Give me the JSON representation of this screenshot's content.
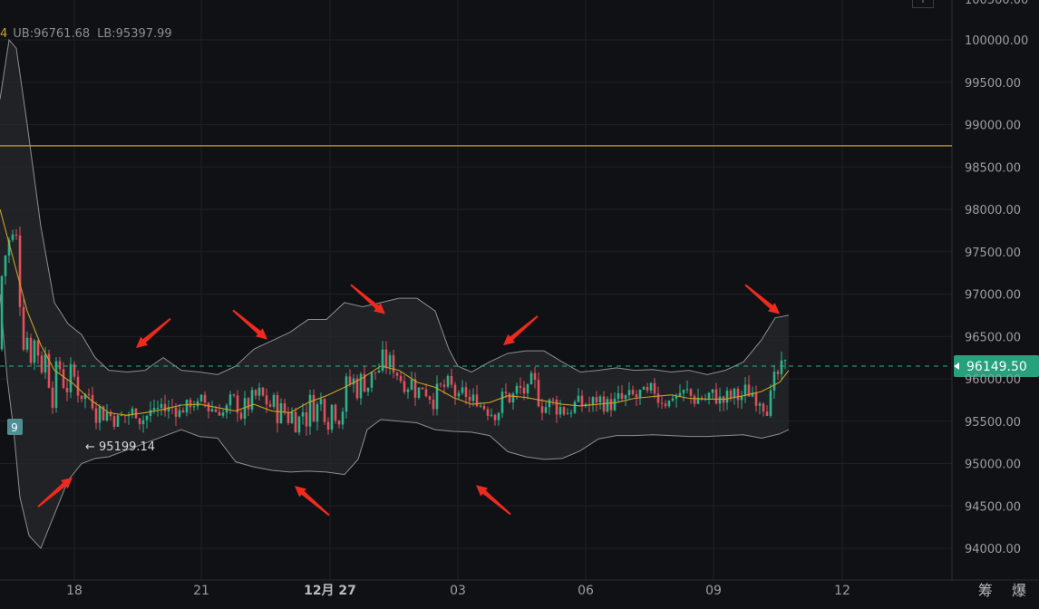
{
  "legend": {
    "accent_text": "4",
    "ub_label": "UB:96761.68",
    "lb_label": "LB:95397.99"
  },
  "chart_data": {
    "type": "candlestick",
    "y_ticks": [
      "94000.00",
      "94500.00",
      "95000.00",
      "95500.00",
      "96000.00",
      "96500.00",
      "97000.00",
      "97500.00",
      "98000.00",
      "98500.00",
      "99000.00",
      "99500.00",
      "100000.00"
    ],
    "x_ticks": [
      "18",
      "21",
      "12月 27",
      "03",
      "06",
      "09",
      "12"
    ],
    "ylim": [
      93800,
      100200
    ],
    "current_price": "96149.50",
    "horizontal_line_price": 98750,
    "low_marker_label": "← 95199.14",
    "left_badge": "9",
    "bands_upper": [
      [
        0,
        99300
      ],
      [
        10,
        100000
      ],
      [
        18,
        99900
      ],
      [
        30,
        99000
      ],
      [
        45,
        97800
      ],
      [
        60,
        96900
      ],
      [
        75,
        96650
      ],
      [
        90,
        96520
      ],
      [
        105,
        96250
      ],
      [
        120,
        96100
      ],
      [
        140,
        96080
      ],
      [
        160,
        96100
      ],
      [
        180,
        96250
      ],
      [
        200,
        96100
      ],
      [
        220,
        96080
      ],
      [
        240,
        96050
      ],
      [
        260,
        96150
      ],
      [
        280,
        96350
      ],
      [
        300,
        96450
      ],
      [
        320,
        96550
      ],
      [
        340,
        96700
      ],
      [
        360,
        96700
      ],
      [
        380,
        96900
      ],
      [
        400,
        96850
      ],
      [
        420,
        96900
      ],
      [
        440,
        96950
      ],
      [
        460,
        96950
      ],
      [
        480,
        96800
      ],
      [
        495,
        96350
      ],
      [
        505,
        96150
      ],
      [
        520,
        96080
      ],
      [
        540,
        96200
      ],
      [
        560,
        96300
      ],
      [
        580,
        96330
      ],
      [
        600,
        96330
      ],
      [
        620,
        96200
      ],
      [
        640,
        96080
      ],
      [
        660,
        96100
      ],
      [
        680,
        96130
      ],
      [
        700,
        96100
      ],
      [
        720,
        96110
      ],
      [
        740,
        96080
      ],
      [
        760,
        96100
      ],
      [
        780,
        96050
      ],
      [
        800,
        96100
      ],
      [
        820,
        96200
      ],
      [
        840,
        96460
      ],
      [
        855,
        96720
      ],
      [
        870,
        96750
      ]
    ],
    "bands_lower": [
      [
        0,
        97000
      ],
      [
        8,
        96000
      ],
      [
        15,
        95400
      ],
      [
        22,
        94600
      ],
      [
        32,
        94150
      ],
      [
        45,
        94000
      ],
      [
        60,
        94400
      ],
      [
        75,
        94800
      ],
      [
        90,
        95000
      ],
      [
        105,
        95060
      ],
      [
        120,
        95080
      ],
      [
        150,
        95200
      ],
      [
        180,
        95320
      ],
      [
        200,
        95400
      ],
      [
        220,
        95320
      ],
      [
        240,
        95300
      ],
      [
        260,
        95020
      ],
      [
        280,
        94960
      ],
      [
        300,
        94920
      ],
      [
        320,
        94900
      ],
      [
        340,
        94910
      ],
      [
        360,
        94900
      ],
      [
        380,
        94870
      ],
      [
        395,
        95050
      ],
      [
        405,
        95400
      ],
      [
        420,
        95520
      ],
      [
        440,
        95500
      ],
      [
        460,
        95480
      ],
      [
        480,
        95400
      ],
      [
        500,
        95380
      ],
      [
        520,
        95370
      ],
      [
        540,
        95330
      ],
      [
        560,
        95140
      ],
      [
        580,
        95080
      ],
      [
        600,
        95050
      ],
      [
        620,
        95060
      ],
      [
        640,
        95150
      ],
      [
        660,
        95290
      ],
      [
        680,
        95330
      ],
      [
        700,
        95330
      ],
      [
        720,
        95340
      ],
      [
        740,
        95330
      ],
      [
        760,
        95320
      ],
      [
        780,
        95320
      ],
      [
        800,
        95330
      ],
      [
        820,
        95340
      ],
      [
        840,
        95300
      ],
      [
        860,
        95350
      ],
      [
        870,
        95400
      ]
    ],
    "middle_line": [
      [
        0,
        98000
      ],
      [
        15,
        97400
      ],
      [
        30,
        96800
      ],
      [
        45,
        96400
      ],
      [
        60,
        96100
      ],
      [
        80,
        95950
      ],
      [
        100,
        95750
      ],
      [
        120,
        95600
      ],
      [
        140,
        95570
      ],
      [
        160,
        95600
      ],
      [
        180,
        95640
      ],
      [
        200,
        95690
      ],
      [
        220,
        95700
      ],
      [
        240,
        95660
      ],
      [
        260,
        95620
      ],
      [
        280,
        95700
      ],
      [
        300,
        95620
      ],
      [
        320,
        95600
      ],
      [
        340,
        95720
      ],
      [
        360,
        95800
      ],
      [
        380,
        95900
      ],
      [
        400,
        96010
      ],
      [
        420,
        96150
      ],
      [
        440,
        96100
      ],
      [
        460,
        95960
      ],
      [
        480,
        95900
      ],
      [
        500,
        95780
      ],
      [
        520,
        95700
      ],
      [
        540,
        95720
      ],
      [
        560,
        95800
      ],
      [
        580,
        95780
      ],
      [
        600,
        95740
      ],
      [
        620,
        95700
      ],
      [
        640,
        95680
      ],
      [
        660,
        95700
      ],
      [
        680,
        95720
      ],
      [
        700,
        95770
      ],
      [
        720,
        95790
      ],
      [
        740,
        95810
      ],
      [
        760,
        95770
      ],
      [
        780,
        95760
      ],
      [
        800,
        95760
      ],
      [
        820,
        95800
      ],
      [
        840,
        95850
      ],
      [
        860,
        95960
      ],
      [
        870,
        96100
      ]
    ],
    "annotations": [
      {
        "x": 60,
        "y": 95050,
        "dir": "up-right"
      },
      {
        "x": 170,
        "y": 96150,
        "dir": "down-left"
      },
      {
        "x": 275,
        "y": 96250,
        "dir": "down-right"
      },
      {
        "x": 345,
        "y": 94950,
        "dir": "up-left"
      },
      {
        "x": 405,
        "y": 96550,
        "dir": "down-right"
      },
      {
        "x": 545,
        "y": 94960,
        "dir": "up-left"
      },
      {
        "x": 575,
        "y": 96180,
        "dir": "down-left"
      },
      {
        "x": 840,
        "y": 96550,
        "dir": "down-right"
      }
    ],
    "grid": true
  },
  "footer": {
    "chars": "筹 爆"
  }
}
